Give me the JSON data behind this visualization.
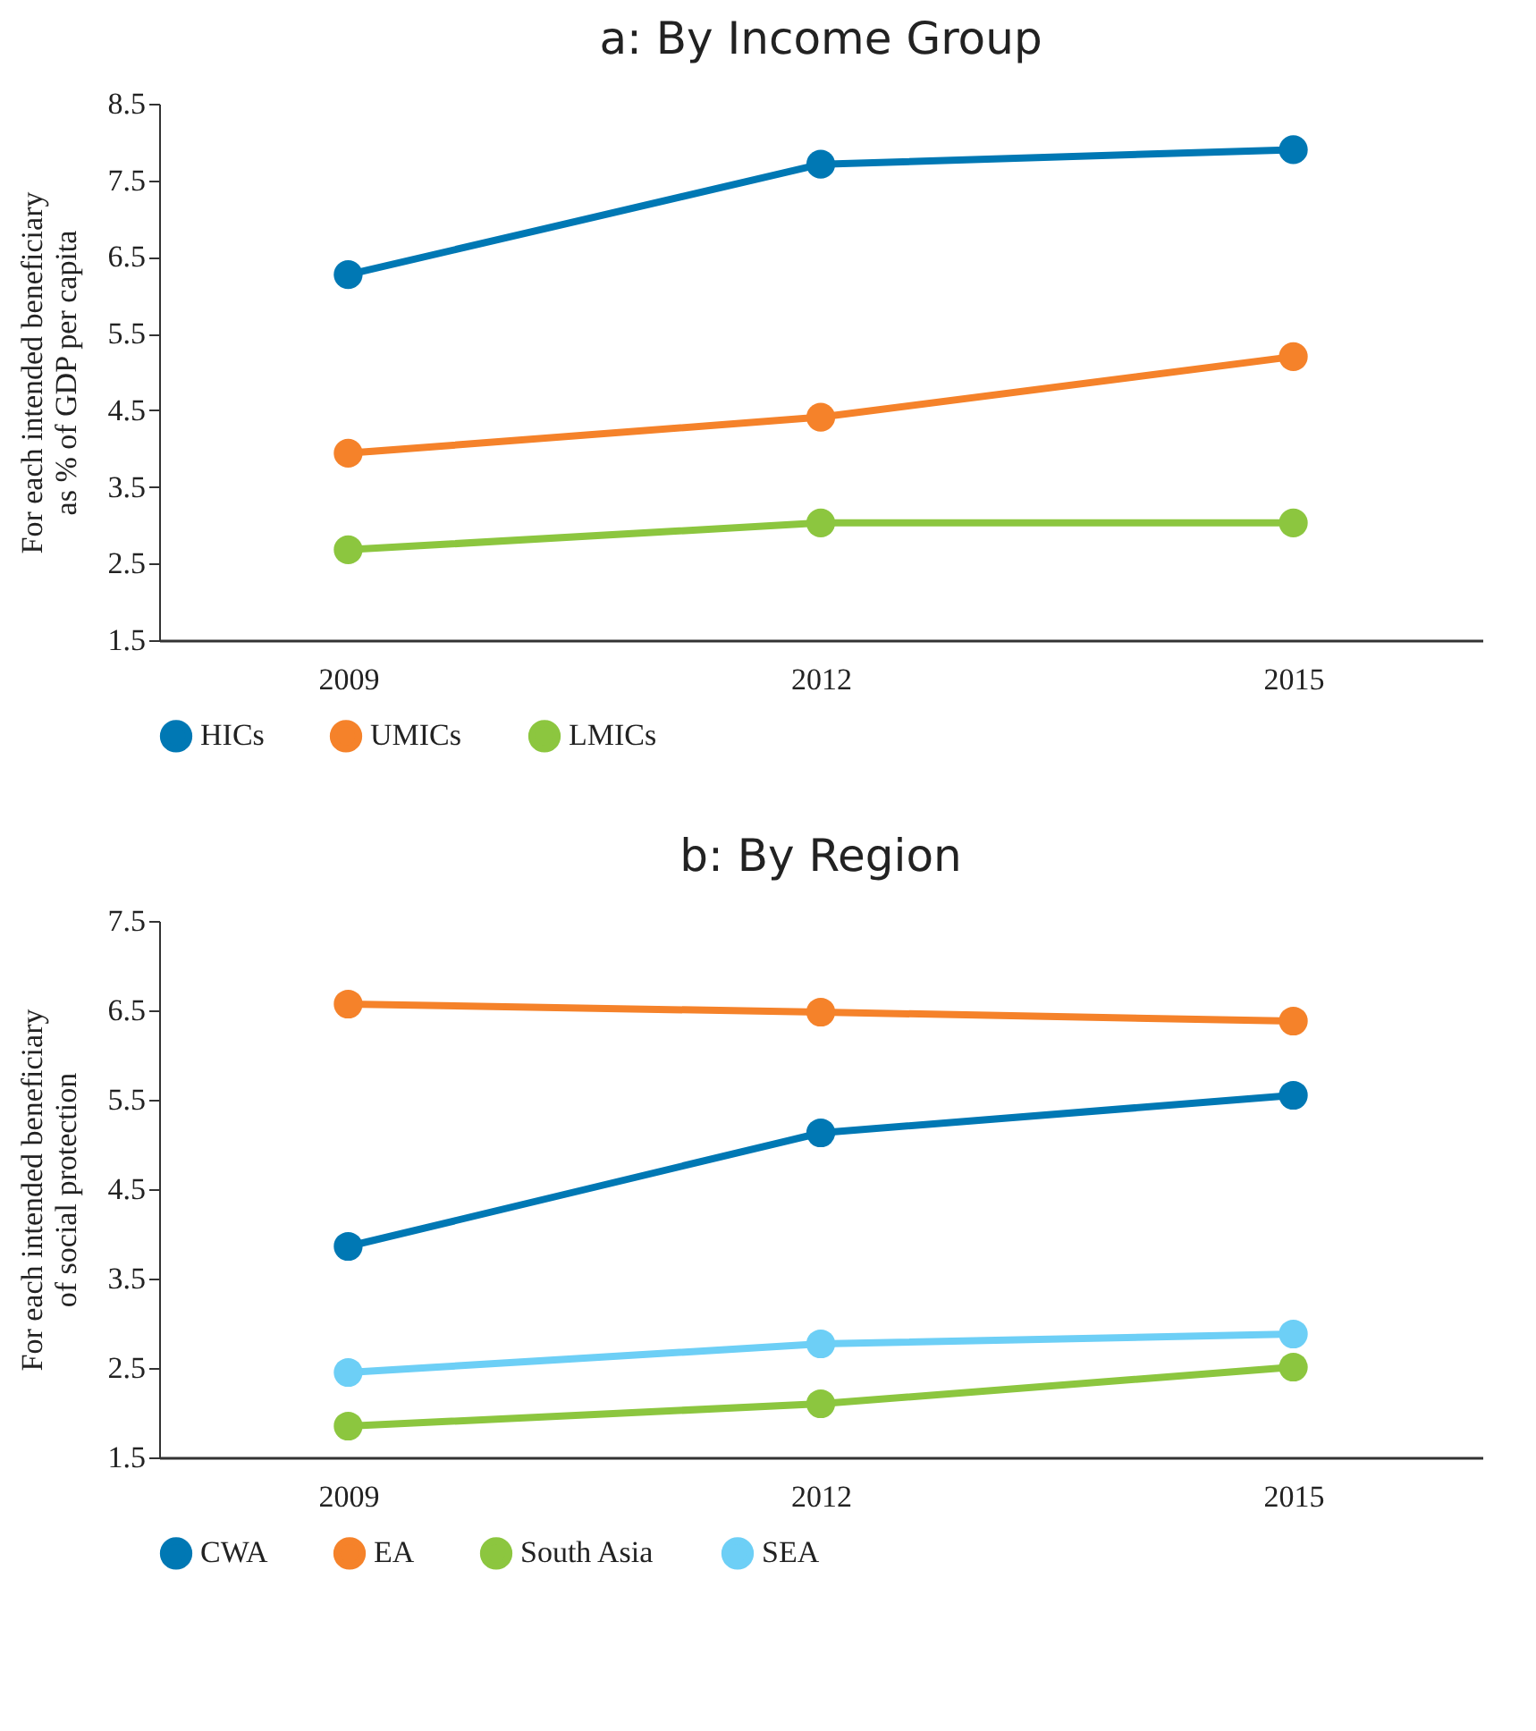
{
  "chart_data": [
    {
      "type": "line",
      "title": "a: By Income Group",
      "ylabel": "For each intended beneficiary as % of GDP per capita",
      "categories": [
        "2009",
        "2012",
        "2015"
      ],
      "ylim": [
        1.5,
        8.5
      ],
      "yticks": [
        1.5,
        2.5,
        3.5,
        4.5,
        5.5,
        6.5,
        7.5,
        8.5
      ],
      "grid": false,
      "legend": "bottom",
      "marker": "circle",
      "series": [
        {
          "name": "HICs",
          "color": "#0078b4",
          "values": [
            6.27,
            7.71,
            7.9
          ]
        },
        {
          "name": "UMICs",
          "color": "#f5822a",
          "values": [
            3.94,
            4.41,
            5.2
          ]
        },
        {
          "name": "LMICs",
          "color": "#8cc63f",
          "values": [
            2.68,
            3.03,
            3.03
          ]
        }
      ]
    },
    {
      "type": "line",
      "title": "b: By Region",
      "ylabel": "For each intended beneficiary of social protection",
      "categories": [
        "2009",
        "2012",
        "2015"
      ],
      "ylim": [
        1.5,
        7.5
      ],
      "yticks": [
        1.5,
        2.5,
        3.5,
        4.5,
        5.5,
        6.5,
        7.5
      ],
      "grid": false,
      "legend": "bottom",
      "marker": "circle",
      "series": [
        {
          "name": "CWA",
          "color": "#0078b4",
          "values": [
            3.86,
            5.13,
            5.55
          ]
        },
        {
          "name": "EA",
          "color": "#f5822a",
          "values": [
            6.57,
            6.48,
            6.38
          ]
        },
        {
          "name": "South Asia",
          "color": "#8cc63f",
          "values": [
            1.85,
            2.1,
            2.51
          ]
        },
        {
          "name": "SEA",
          "color": "#6dcff6",
          "values": [
            2.45,
            2.77,
            2.88
          ]
        }
      ]
    }
  ]
}
